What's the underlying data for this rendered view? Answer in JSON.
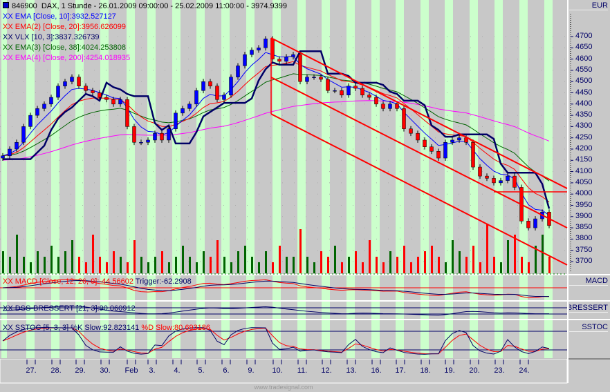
{
  "header": {
    "symbol": "846900",
    "title": "DAX, 1 Stunde - 26.01.2009 09:00:00 - 25.02.2009 11:00:00 - 3974.9399"
  },
  "legend": [
    {
      "text": "XX EMA [Close, 10]:3932.527127",
      "color": "#0000ff"
    },
    {
      "text": "XX EMA(2) [Close, 20]:3956.626099",
      "color": "#ff0000"
    },
    {
      "text": "XX VLX [10, 3]:3837.326739",
      "color": "#000066"
    },
    {
      "text": "XX EMA(3) [Close, 38]:4024.253808",
      "color": "#006400"
    },
    {
      "text": "XX EMA(4) [Close, 200]:4254.018935",
      "color": "#ff00ff"
    }
  ],
  "panels": {
    "price_axis_label": "EUR",
    "macd": {
      "label": "MACD",
      "legend": "XX MACD [Close, 12, 26, 9]:-44.56602",
      "trigger": "Trigger:-62.2908"
    },
    "dss": {
      "label": "BRESSERT",
      "legend": "XX DSS-BRESSERT [21, 3]:90.060912"
    },
    "sstoc": {
      "label": "SSTOC",
      "legend": "XX SSTOC [5, 3, 3] %K Slow:92.823141",
      "d": "%D Slow:80.693186"
    }
  },
  "watermark": "www.tradesignal.com",
  "colors": {
    "up": "#0000ff",
    "down": "#ff0000",
    "ema10": "#0000ff",
    "ema20": "#ff0000",
    "vlx": "#000066",
    "ema38": "#006400",
    "ema200": "#ff00ff",
    "vol_up": "#006400",
    "vol_down": "#ff0000",
    "session": "#ccffcc",
    "channel": "#ff0000"
  },
  "chart_data": {
    "type": "candlestick",
    "ylim": [
      3650,
      4780
    ],
    "yticks": [
      4700,
      4650,
      4600,
      4550,
      4500,
      4450,
      4400,
      4350,
      4300,
      4250,
      4200,
      4150,
      4100,
      4050,
      4000,
      3950,
      3900,
      3850,
      3800,
      3750,
      3700
    ],
    "xticks": [
      "27.",
      "28.",
      "29.",
      "30.",
      "Feb",
      "3.",
      "4.",
      "5.",
      "6.",
      "9.",
      "10.",
      "11.",
      "12.",
      "13.",
      "16.",
      "17.",
      "18.",
      "19.",
      "20.",
      "23.",
      "24."
    ],
    "closes": [
      4170,
      4200,
      4230,
      4300,
      4350,
      4380,
      4400,
      4430,
      4480,
      4500,
      4520,
      4480,
      4460,
      4450,
      4430,
      4420,
      4400,
      4420,
      4300,
      4230,
      4230,
      4240,
      4270,
      4240,
      4290,
      4360,
      4380,
      4400,
      4460,
      4500,
      4480,
      4420,
      4440,
      4520,
      4570,
      4620,
      4640,
      4650,
      4690,
      4600,
      4590,
      4610,
      4620,
      4500,
      4520,
      4520,
      4510,
      4460,
      4460,
      4440,
      4480,
      4470,
      4440,
      4430,
      4400,
      4380,
      4400,
      4380,
      4290,
      4270,
      4240,
      4210,
      4190,
      4160,
      4230,
      4240,
      4250,
      4230,
      4120,
      4080,
      4070,
      4050,
      4060,
      4080,
      4030,
      3880,
      3850,
      3890,
      3920,
      3860
    ],
    "volume": [
      4,
      3,
      7,
      3,
      2,
      4,
      3,
      5,
      3,
      4,
      6,
      3,
      2,
      7,
      3,
      2,
      4,
      3,
      2,
      6,
      3,
      2,
      3,
      4,
      2,
      3,
      5,
      3,
      2,
      4,
      3,
      6,
      3,
      2,
      4,
      5,
      3,
      2,
      4,
      2,
      5,
      3,
      3,
      8,
      3,
      2,
      4,
      3,
      5,
      2,
      3,
      4,
      2,
      6,
      3,
      2,
      4,
      3,
      5,
      2,
      3,
      4,
      5,
      3,
      2,
      6,
      4,
      3,
      5,
      2,
      9,
      3,
      2,
      6,
      7,
      3,
      2,
      5,
      7,
      3
    ],
    "channel": {
      "start_bar": 38.8,
      "end_bar": 82,
      "upper": [
        4694,
        4025
      ],
      "middle": [
        4519,
        3850
      ],
      "lower": [
        4356,
        3685
      ]
    },
    "resistance": {
      "price": 4010,
      "start_bar": 71
    }
  }
}
